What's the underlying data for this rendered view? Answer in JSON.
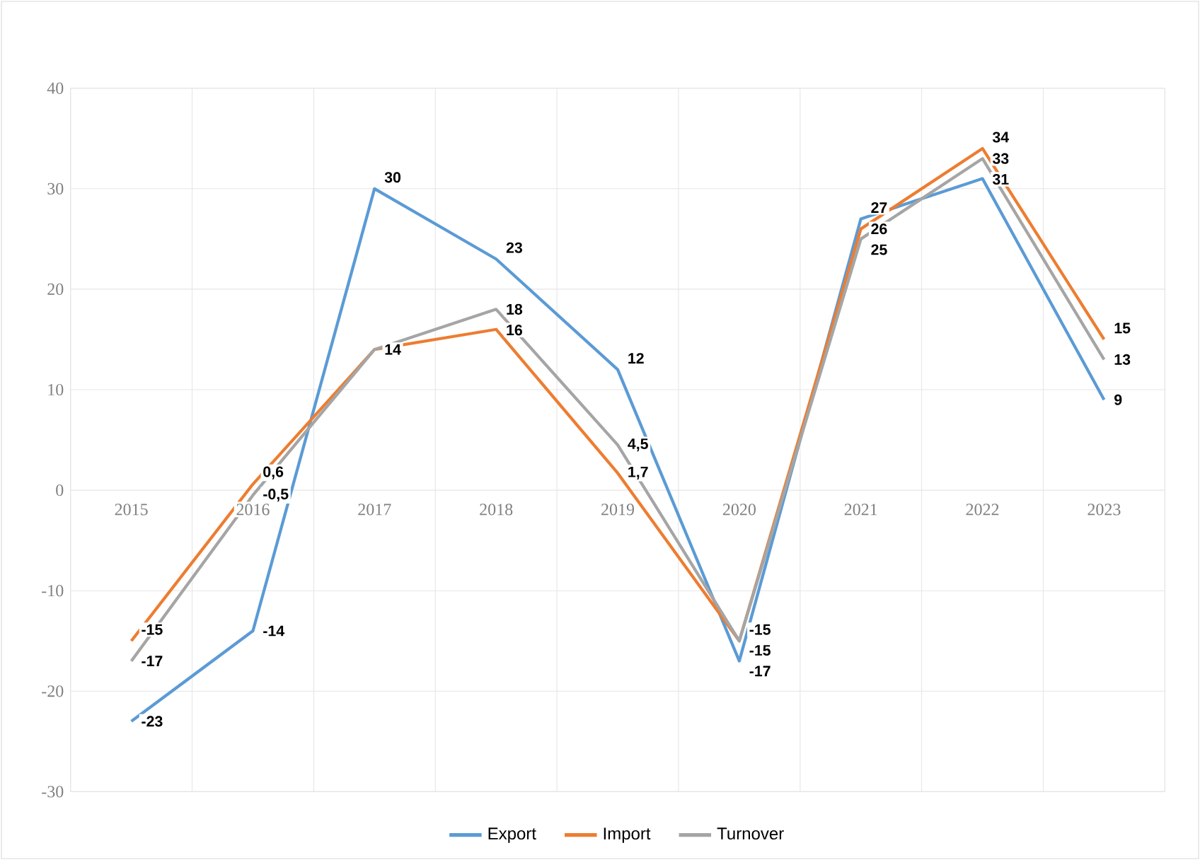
{
  "chart_data": {
    "type": "line",
    "categories": [
      "2015",
      "2016",
      "2017",
      "2018",
      "2019",
      "2020",
      "2021",
      "2022",
      "2023"
    ],
    "series": [
      {
        "name": "Export",
        "color": "#5b9bd5",
        "values": [
          -23,
          -14,
          30,
          23,
          12,
          -17,
          27,
          31,
          9
        ],
        "value_labels": [
          "-23",
          "-14",
          "30",
          "23",
          "12",
          "-17",
          "27",
          "31",
          "9"
        ]
      },
      {
        "name": "Import",
        "color": "#ed7d31",
        "values": [
          -15,
          0.6,
          14,
          16,
          1.7,
          -15,
          26,
          34,
          15
        ],
        "value_labels": [
          "-15",
          "0,6",
          "14",
          "16",
          "1,7",
          "-15",
          "26",
          "34",
          "15"
        ]
      },
      {
        "name": "Turnover",
        "color": "#a5a5a5",
        "values": [
          -17,
          -0.5,
          14,
          18,
          4.5,
          -15,
          25,
          33,
          13
        ],
        "value_labels": [
          "-17",
          "-0,5",
          null,
          "18",
          "4,5",
          "-15",
          "25",
          "33",
          "13"
        ]
      }
    ],
    "ylim": [
      -30,
      40
    ],
    "yticks": [
      -30,
      -20,
      -10,
      0,
      10,
      20,
      30,
      40
    ],
    "grid": true,
    "legend": "bottom",
    "marker": "none",
    "line_style": "solid"
  }
}
